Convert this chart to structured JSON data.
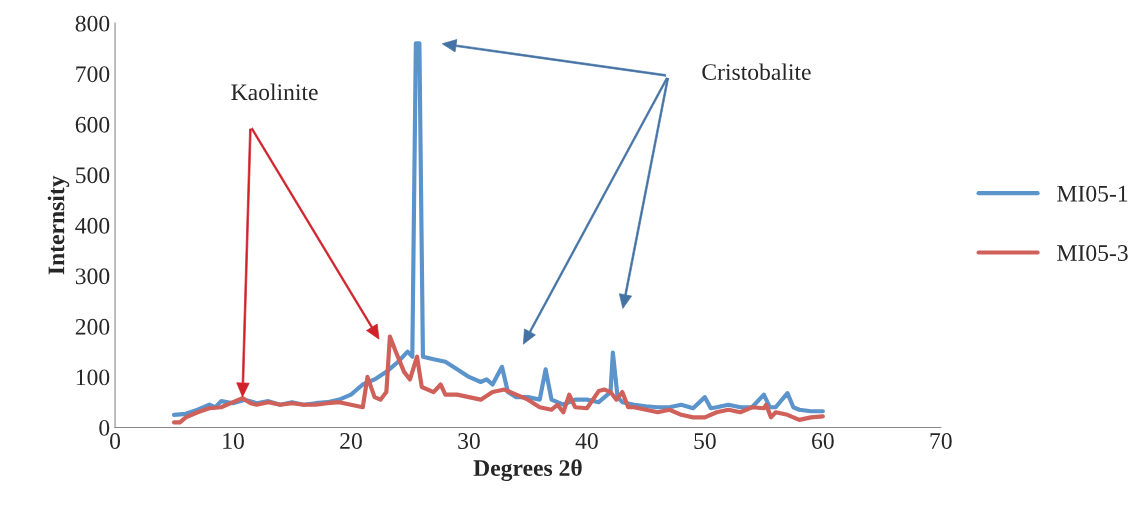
{
  "chart_data": {
    "type": "line",
    "xlabel": "Degrees 2θ",
    "ylabel": "Internsity",
    "xlim": [
      0,
      70
    ],
    "xticks": [
      0,
      10,
      20,
      30,
      40,
      50,
      60,
      70
    ],
    "ylim": [
      0,
      800
    ],
    "yticks": [
      0,
      100,
      200,
      300,
      400,
      500,
      600,
      700,
      800
    ],
    "grid": false,
    "legend": "right",
    "marker": "none",
    "line_style": "solid",
    "annotations": [
      "Kaolinite",
      "Cristobalite"
    ],
    "series": [
      {
        "name": "MI05-1",
        "color": "#5b93cb",
        "x": [
          5,
          6,
          7,
          8,
          8.5,
          9,
          10,
          11,
          12,
          13,
          14,
          15,
          16,
          17,
          18,
          19,
          20,
          21,
          22,
          23,
          24,
          24.8,
          25.2,
          25.5,
          25.8,
          26.1,
          27,
          28,
          29,
          30,
          31,
          31.5,
          32,
          32.8,
          33.3,
          34,
          35,
          36,
          36.5,
          37,
          38,
          39,
          40,
          41,
          42,
          42.2,
          42.6,
          43,
          44,
          45,
          46,
          47,
          48,
          49,
          50,
          50.5,
          51,
          52,
          53,
          54,
          55,
          55.5,
          56,
          57,
          57.5,
          58,
          59,
          60
        ],
        "values": [
          25,
          27,
          35,
          45,
          40,
          52,
          48,
          55,
          48,
          52,
          45,
          50,
          45,
          48,
          50,
          55,
          65,
          85,
          95,
          110,
          130,
          150,
          140,
          760,
          760,
          140,
          135,
          130,
          115,
          100,
          90,
          95,
          85,
          120,
          70,
          60,
          60,
          55,
          115,
          55,
          45,
          55,
          55,
          50,
          70,
          148,
          60,
          50,
          45,
          42,
          40,
          40,
          45,
          38,
          60,
          38,
          40,
          45,
          40,
          40,
          65,
          40,
          40,
          68,
          40,
          35,
          32,
          32
        ]
      },
      {
        "name": "MI05-3",
        "color": "#d0605a",
        "x": [
          5,
          5.5,
          6,
          7,
          8,
          9,
          10,
          10.8,
          11.5,
          12,
          13,
          14,
          15,
          16,
          17,
          18,
          19,
          20,
          21,
          21.4,
          22,
          22.5,
          23,
          23.3,
          23.8,
          24.5,
          25,
          25.6,
          26,
          27,
          27.6,
          28,
          29,
          30,
          31,
          32,
          33,
          34,
          35,
          36,
          37,
          37.5,
          38,
          38.5,
          39,
          40,
          41,
          41.5,
          42,
          42.5,
          43,
          43.5,
          44,
          45,
          46,
          47,
          48,
          49,
          50,
          51,
          52,
          53,
          54,
          55,
          55.2,
          55.6,
          56,
          57,
          58,
          59,
          60
        ],
        "values": [
          10,
          10,
          20,
          30,
          38,
          40,
          50,
          58,
          48,
          45,
          50,
          45,
          48,
          45,
          45,
          48,
          50,
          45,
          40,
          100,
          60,
          55,
          70,
          180,
          150,
          110,
          95,
          140,
          80,
          70,
          85,
          65,
          65,
          60,
          55,
          70,
          75,
          65,
          55,
          40,
          35,
          45,
          30,
          65,
          40,
          38,
          72,
          75,
          70,
          55,
          70,
          40,
          40,
          35,
          30,
          35,
          25,
          20,
          20,
          30,
          35,
          30,
          40,
          38,
          45,
          20,
          30,
          25,
          15,
          20,
          22
        ]
      }
    ]
  }
}
